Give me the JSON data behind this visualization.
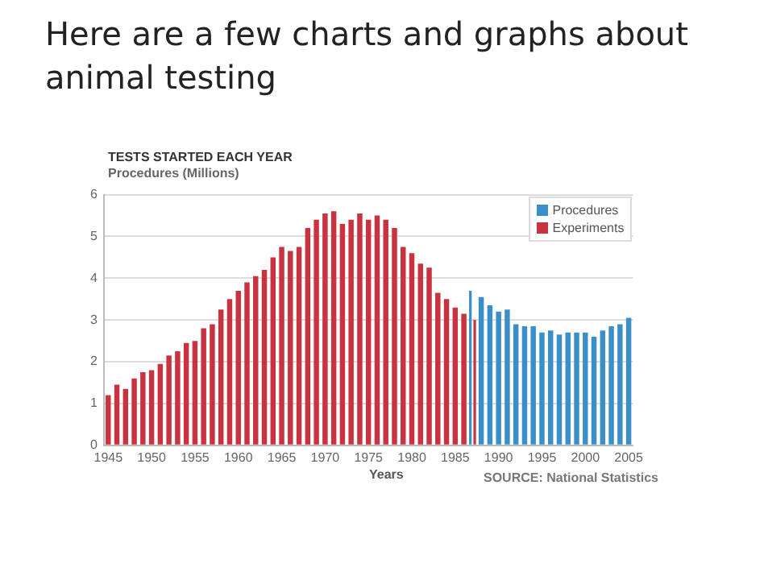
{
  "chart_data": {
    "type": "bar",
    "title": "Here are a few charts and graphs about animal testing",
    "subtitle": "TESTS STARTED EACH YEAR",
    "ylabel": "Procedures (Millions)",
    "xlabel": "Years",
    "annotations": [
      "SOURCE: National Statistics"
    ],
    "categories": [
      "1945",
      null,
      null,
      null,
      null,
      "1950",
      null,
      null,
      null,
      null,
      "1955",
      null,
      null,
      null,
      null,
      "1960",
      null,
      null,
      null,
      null,
      "1965",
      null,
      null,
      null,
      null,
      "1970",
      null,
      null,
      null,
      null,
      "1975",
      null,
      null,
      null,
      null,
      "1980",
      null,
      null,
      null,
      null,
      "1985",
      null,
      null,
      null,
      null,
      "1990",
      null,
      null,
      null,
      null,
      "1995",
      null,
      null,
      null,
      null,
      "2000",
      null,
      null,
      null,
      null,
      "2005"
    ],
    "series": [
      {
        "name": "Procedures",
        "color": "#3b8fc9",
        "values": [
          null,
          null,
          null,
          null,
          null,
          null,
          null,
          null,
          null,
          null,
          null,
          null,
          null,
          null,
          null,
          null,
          null,
          null,
          null,
          null,
          null,
          null,
          null,
          null,
          null,
          null,
          null,
          null,
          null,
          null,
          null,
          null,
          null,
          null,
          null,
          null,
          null,
          null,
          null,
          null,
          null,
          null,
          3.7,
          3.55,
          3.35,
          3.2,
          3.25,
          2.9,
          2.85,
          2.85,
          2.7,
          2.75,
          2.65,
          2.7,
          2.7,
          2.7,
          2.6,
          2.75,
          2.85,
          2.9,
          3.05
        ]
      },
      {
        "name": "Experiments",
        "color": "#c9323f",
        "values": [
          1.2,
          1.45,
          1.35,
          1.6,
          1.75,
          1.8,
          1.95,
          2.15,
          2.25,
          2.45,
          2.5,
          2.8,
          2.9,
          3.25,
          3.5,
          3.7,
          3.9,
          4.05,
          4.2,
          4.5,
          4.75,
          4.65,
          4.75,
          5.2,
          5.4,
          5.55,
          5.6,
          5.3,
          5.4,
          5.55,
          5.4,
          5.5,
          5.4,
          5.2,
          4.75,
          4.6,
          4.35,
          4.25,
          3.65,
          3.5,
          3.3,
          3.15,
          3.0,
          null,
          null,
          null,
          null,
          null,
          null,
          null,
          null,
          null,
          null,
          null,
          null,
          null,
          null,
          null,
          null,
          null,
          null
        ]
      }
    ],
    "ylim": [
      0,
      6
    ],
    "yticks": [
      0,
      1,
      2,
      3,
      4,
      5,
      6
    ],
    "grid": "y",
    "legend": "top right"
  }
}
